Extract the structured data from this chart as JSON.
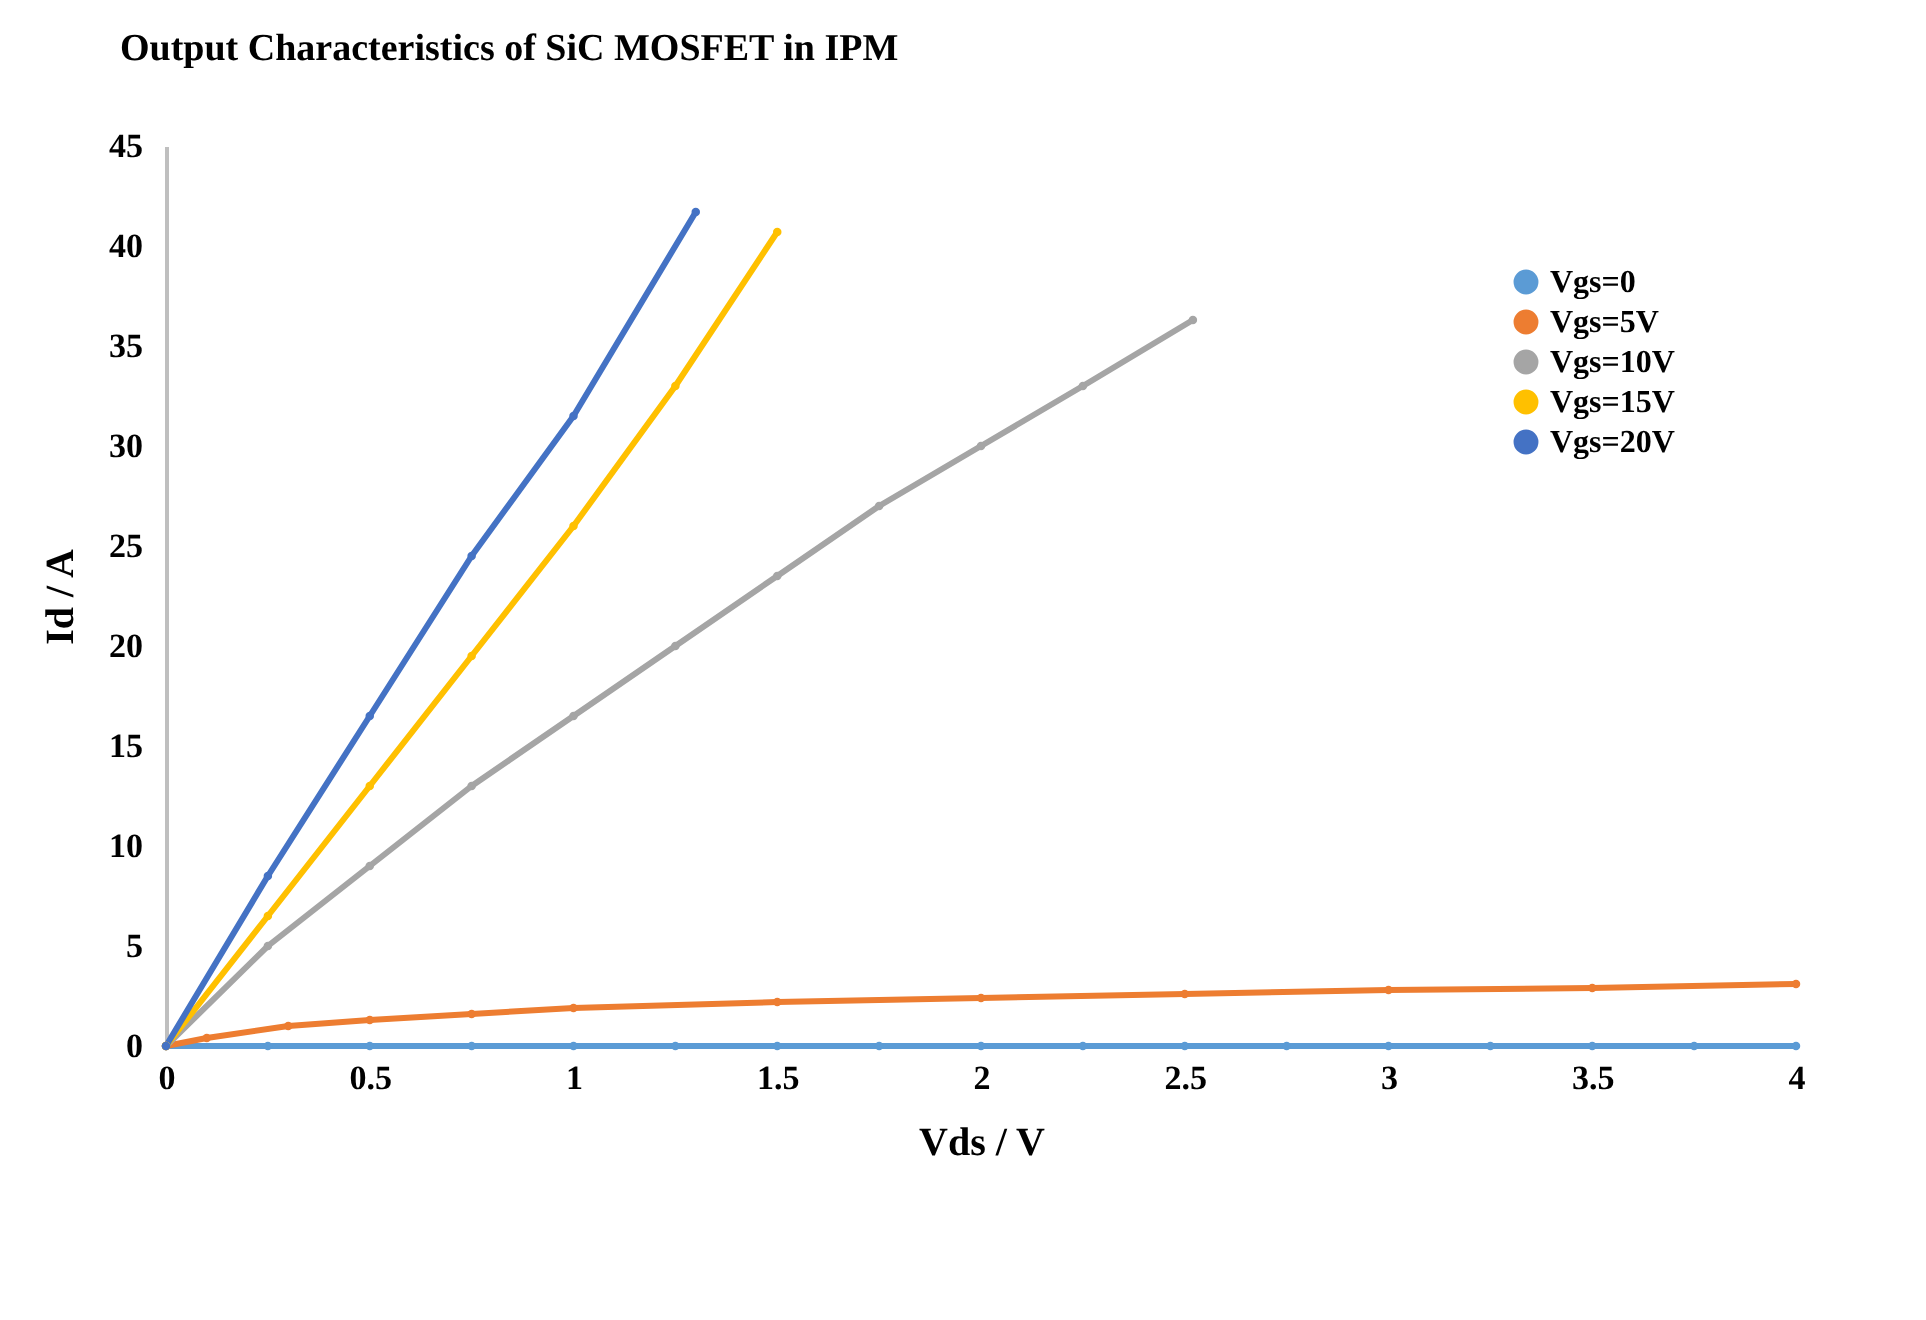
{
  "chart_data": {
    "type": "line",
    "title": "Output Characteristics of SiC MOSFET in IPM",
    "xlabel": "Vds / V",
    "ylabel": "Id / A",
    "xlim": [
      0,
      4
    ],
    "xticks": [
      0,
      0.5,
      1,
      1.5,
      2,
      2.5,
      3,
      3.5,
      4
    ],
    "ylim": [
      0,
      45
    ],
    "yticks": [
      0,
      5,
      10,
      15,
      20,
      25,
      30,
      35,
      40,
      45
    ],
    "grid": false,
    "legend": "top right",
    "marker": "circle",
    "line_style": "solid",
    "series": [
      {
        "name": "Vgs=0",
        "color": "#5b9bd5",
        "x": [
          0,
          0.25,
          0.5,
          0.75,
          1,
          1.25,
          1.5,
          1.75,
          2,
          2.25,
          2.5,
          2.75,
          3,
          3.25,
          3.5,
          3.75,
          4
        ],
        "values": [
          0,
          0,
          0,
          0,
          0,
          0,
          0,
          0,
          0,
          0,
          0,
          0,
          0,
          0,
          0,
          0,
          0
        ]
      },
      {
        "name": "Vgs=5V",
        "color": "#ed7d31",
        "x": [
          0,
          0.1,
          0.3,
          0.5,
          0.75,
          1,
          1.5,
          2,
          2.5,
          3,
          3.5,
          4
        ],
        "values": [
          0,
          0.4,
          1.0,
          1.3,
          1.6,
          1.9,
          2.2,
          2.4,
          2.6,
          2.8,
          2.9,
          3.1
        ]
      },
      {
        "name": "Vgs=10V",
        "color": "#a5a5a5",
        "x": [
          0,
          0.25,
          0.5,
          0.75,
          1,
          1.25,
          1.5,
          1.75,
          2,
          2.25,
          2.52
        ],
        "values": [
          0,
          5,
          9,
          13,
          16.5,
          20,
          23.5,
          27,
          30,
          33,
          36.3
        ]
      },
      {
        "name": "Vgs=15V",
        "color": "#ffc000",
        "x": [
          0,
          0.25,
          0.5,
          0.75,
          1,
          1.25,
          1.5
        ],
        "values": [
          0,
          6.5,
          13,
          19.5,
          26,
          33,
          40.7
        ]
      },
      {
        "name": "Vgs=20V",
        "color": "#4472c4",
        "x": [
          0,
          0.25,
          0.5,
          0.75,
          1,
          1.3
        ],
        "values": [
          0,
          8.5,
          16.5,
          24.5,
          31.5,
          41.7
        ]
      }
    ]
  }
}
